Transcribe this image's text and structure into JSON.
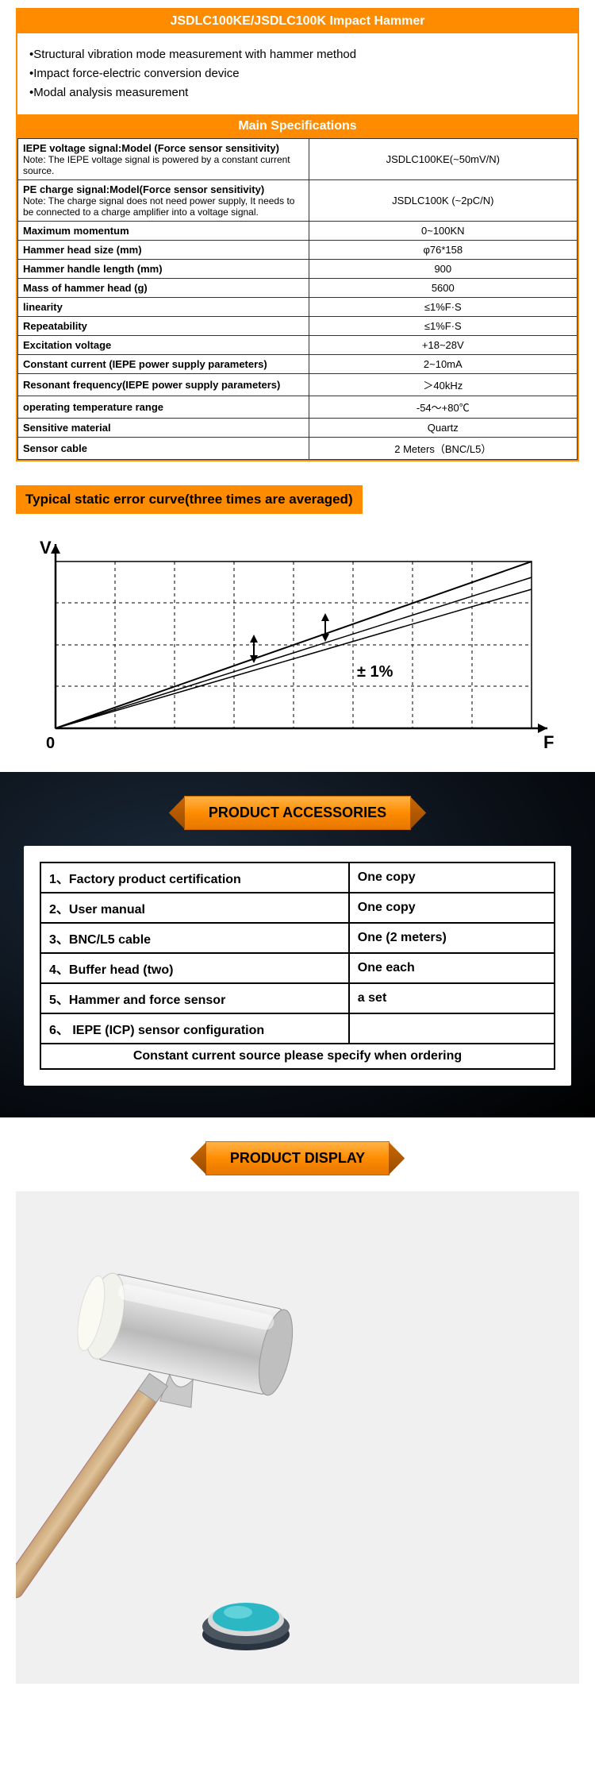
{
  "title": "JSDLC100KE/JSDLC100K Impact Hammer",
  "features": [
    "Structural vibration mode measurement with hammer method",
    "Impact force-electric conversion device",
    "Modal analysis measurement"
  ],
  "spec_header": "Main Specifications",
  "specs": [
    {
      "label": "IEPE voltage signal:Model (Force sensor sensitivity)",
      "note": "Note: The IEPE voltage signal is powered by a constant current source.",
      "value": "JSDLC100KE(~50mV/N)"
    },
    {
      "label": "PE charge signal:Model(Force sensor sensitivity)",
      "note": "Note: The charge signal does not need power supply, It needs to be connected to a charge amplifier into a voltage signal.",
      "value": "JSDLC100K (~2pC/N)"
    },
    {
      "label": "Maximum momentum",
      "value": "0~100KN"
    },
    {
      "label": "Hammer head size (mm)",
      "value": "φ76*158"
    },
    {
      "label": "Hammer handle length (mm)",
      "value": "900"
    },
    {
      "label": "Mass of hammer head (g)",
      "value": "5600"
    },
    {
      "label": "linearity",
      "value": "≤1%F·S"
    },
    {
      "label": "Repeatability",
      "value": "≤1%F·S"
    },
    {
      "label": "Excitation voltage",
      "value": "+18~28V"
    },
    {
      "label": "Constant current (IEPE power supply parameters)",
      "value": "2~10mA"
    },
    {
      "label": "Resonant frequency(IEPE power supply parameters)",
      "value": "＞40kHz"
    },
    {
      "label": "operating temperature range",
      "value": "-54～+80℃"
    },
    {
      "label": "Sensitive material",
      "value": "Quartz"
    },
    {
      "label": "Sensor cable",
      "value": "2 Meters（BNC/L5）"
    }
  ],
  "curve_title": "Typical static error curve(three times are averaged)",
  "curve": {
    "y_label": "V",
    "x_label": "F",
    "origin": "0",
    "tolerance": "± 1%",
    "grid_cols": 8,
    "grid_rows": 4
  },
  "accessories_header": "PRODUCT ACCESSORIES",
  "accessories": [
    {
      "num": "1、",
      "item": "Factory product certification",
      "qty": "One copy"
    },
    {
      "num": "2、",
      "item": "User manual",
      "qty": "One copy"
    },
    {
      "num": "3、",
      "item": "BNC/L5 cable",
      "qty": "One (2 meters)"
    },
    {
      "num": "4、",
      "item": "Buffer head (two)",
      "qty": "One each"
    },
    {
      "num": "5、",
      "item": "Hammer and force sensor",
      "qty": "a set"
    },
    {
      "num": "6、",
      "item": " IEPE (ICP) sensor configuration",
      "qty": ""
    }
  ],
  "accessories_note": "Constant current source please specify when ordering",
  "display_header": "PRODUCT DISPLAY"
}
